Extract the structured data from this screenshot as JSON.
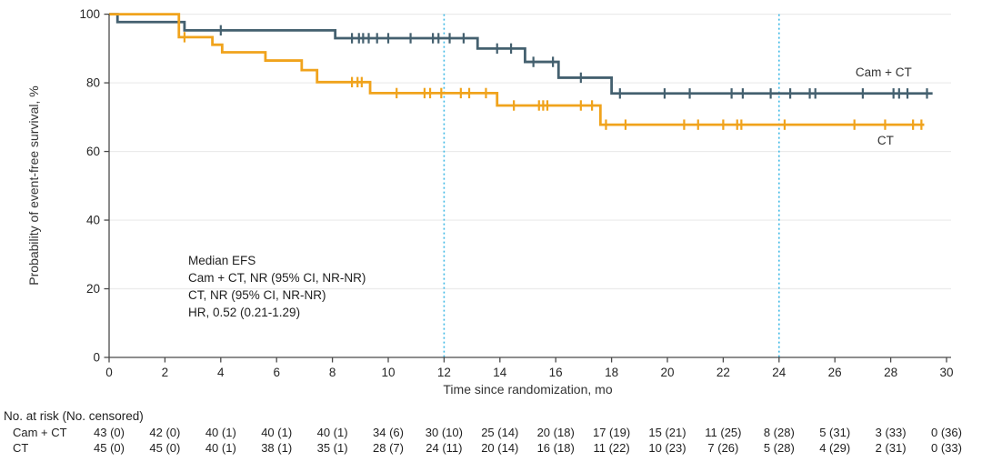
{
  "figure": {
    "x_axis_title": "Time since randomization, mo",
    "y_axis_title": "Probability of event-free survival, %",
    "annotation_lines": [
      "Median EFS",
      "Cam + CT, NR (95% CI, NR-NR)",
      "CT, NR (95% CI, NR-NR)",
      "HR, 0.52 (0.21-1.29)"
    ],
    "colors": {
      "cam_ct_line": "#44606F",
      "ct_line": "#F0A31C",
      "reference_line": "#3FB9E5",
      "gridline": "#EBEBEB",
      "axis": "#4A4A4A",
      "text": "#262626"
    }
  },
  "chart_data": {
    "type": "line",
    "subtype": "kaplan-meier-step",
    "xlabel": "Time since randomization, mo",
    "ylabel": "Probability of event-free survival, %",
    "xlim": [
      0,
      30
    ],
    "ylim": [
      0,
      100
    ],
    "x_ticks": [
      0,
      2,
      4,
      6,
      8,
      10,
      12,
      14,
      16,
      18,
      20,
      22,
      24,
      26,
      28,
      30
    ],
    "y_ticks": [
      0,
      20,
      40,
      60,
      80,
      100
    ],
    "grid": "horizontal",
    "reference_lines_x": [
      12,
      24
    ],
    "series": [
      {
        "name": "Cam + CT",
        "label": "Cam + CT",
        "color": "#44606F",
        "start": [
          0,
          100
        ],
        "steps": [
          [
            0.3,
            97.7
          ],
          [
            2.7,
            95.3
          ],
          [
            8.1,
            93.0
          ],
          [
            13.2,
            90.0
          ],
          [
            14.9,
            86.1
          ],
          [
            16.1,
            81.5
          ],
          [
            18.0,
            76.9
          ]
        ],
        "end_time": 29.5,
        "censor_marks": [
          [
            4.0,
            95.3
          ],
          [
            8.7,
            93.0
          ],
          [
            8.95,
            93.0
          ],
          [
            9.1,
            93.0
          ],
          [
            9.3,
            93.0
          ],
          [
            9.6,
            93.0
          ],
          [
            10.0,
            93.0
          ],
          [
            10.8,
            93.0
          ],
          [
            11.6,
            93.0
          ],
          [
            11.8,
            93.0
          ],
          [
            12.2,
            93.0
          ],
          [
            12.7,
            93.0
          ],
          [
            13.9,
            90.0
          ],
          [
            14.4,
            90.0
          ],
          [
            15.2,
            86.1
          ],
          [
            15.9,
            86.1
          ],
          [
            16.9,
            81.5
          ],
          [
            18.3,
            76.9
          ],
          [
            19.9,
            76.9
          ],
          [
            20.8,
            76.9
          ],
          [
            22.3,
            76.9
          ],
          [
            22.7,
            76.9
          ],
          [
            23.7,
            76.9
          ],
          [
            24.4,
            76.9
          ],
          [
            25.1,
            76.9
          ],
          [
            25.3,
            76.9
          ],
          [
            27.0,
            76.9
          ],
          [
            28.1,
            76.9
          ],
          [
            28.3,
            76.9
          ],
          [
            28.6,
            76.9
          ],
          [
            29.3,
            76.9
          ]
        ],
        "label_at": [
          26.74,
          81.9
        ]
      },
      {
        "name": "CT",
        "label": "CT",
        "color": "#F0A31C",
        "start": [
          0,
          100
        ],
        "steps": [
          [
            2.5,
            93.3
          ],
          [
            3.7,
            91.1
          ],
          [
            4.05,
            88.9
          ],
          [
            5.6,
            86.5
          ],
          [
            6.9,
            83.7
          ],
          [
            7.45,
            80.2
          ],
          [
            9.35,
            77.0
          ],
          [
            13.9,
            73.4
          ],
          [
            17.6,
            67.8
          ]
        ],
        "end_time": 29.2,
        "censor_marks": [
          [
            2.7,
            93.3
          ],
          [
            8.7,
            80.2
          ],
          [
            8.9,
            80.2
          ],
          [
            9.05,
            80.2
          ],
          [
            10.3,
            77.0
          ],
          [
            11.3,
            77.0
          ],
          [
            11.5,
            77.0
          ],
          [
            11.9,
            77.0
          ],
          [
            12.6,
            77.0
          ],
          [
            12.9,
            77.0
          ],
          [
            13.5,
            77.0
          ],
          [
            14.5,
            73.4
          ],
          [
            15.4,
            73.4
          ],
          [
            15.55,
            73.4
          ],
          [
            15.7,
            73.4
          ],
          [
            16.9,
            73.4
          ],
          [
            17.3,
            73.4
          ],
          [
            17.8,
            67.8
          ],
          [
            18.5,
            67.8
          ],
          [
            20.6,
            67.8
          ],
          [
            21.1,
            67.8
          ],
          [
            22.0,
            67.8
          ],
          [
            22.5,
            67.8
          ],
          [
            22.65,
            67.8
          ],
          [
            24.2,
            67.8
          ],
          [
            26.7,
            67.8
          ],
          [
            27.8,
            67.8
          ],
          [
            28.8,
            67.8
          ],
          [
            29.1,
            67.8
          ]
        ],
        "label_at": [
          27.52,
          62.0
        ]
      }
    ],
    "annotations": [
      "Median EFS",
      "Cam + CT, NR (95% CI, NR-NR)",
      "CT, NR (95% CI, NR-NR)",
      "HR, 0.52 (0.21-1.29)"
    ]
  },
  "risk_table": {
    "header": "No. at risk (No. censored)",
    "times": [
      0,
      2,
      4,
      6,
      8,
      10,
      12,
      14,
      16,
      18,
      20,
      22,
      24,
      26,
      28,
      30
    ],
    "rows": [
      {
        "label": "Cam + CT",
        "values": [
          "43 (0)",
          "42 (0)",
          "40 (1)",
          "40 (1)",
          "40 (1)",
          "34 (6)",
          "30 (10)",
          "25 (14)",
          "20 (18)",
          "17 (19)",
          "15 (21)",
          "11 (25)",
          "8 (28)",
          "5 (31)",
          "3 (33)",
          "0 (36)"
        ]
      },
      {
        "label": "CT",
        "values": [
          "45 (0)",
          "45 (0)",
          "40 (1)",
          "38 (1)",
          "35 (1)",
          "28 (7)",
          "24 (11)",
          "20 (14)",
          "16 (18)",
          "11 (22)",
          "10 (23)",
          "7 (26)",
          "5 (28)",
          "4 (29)",
          "2 (31)",
          "0 (33)"
        ]
      }
    ]
  }
}
